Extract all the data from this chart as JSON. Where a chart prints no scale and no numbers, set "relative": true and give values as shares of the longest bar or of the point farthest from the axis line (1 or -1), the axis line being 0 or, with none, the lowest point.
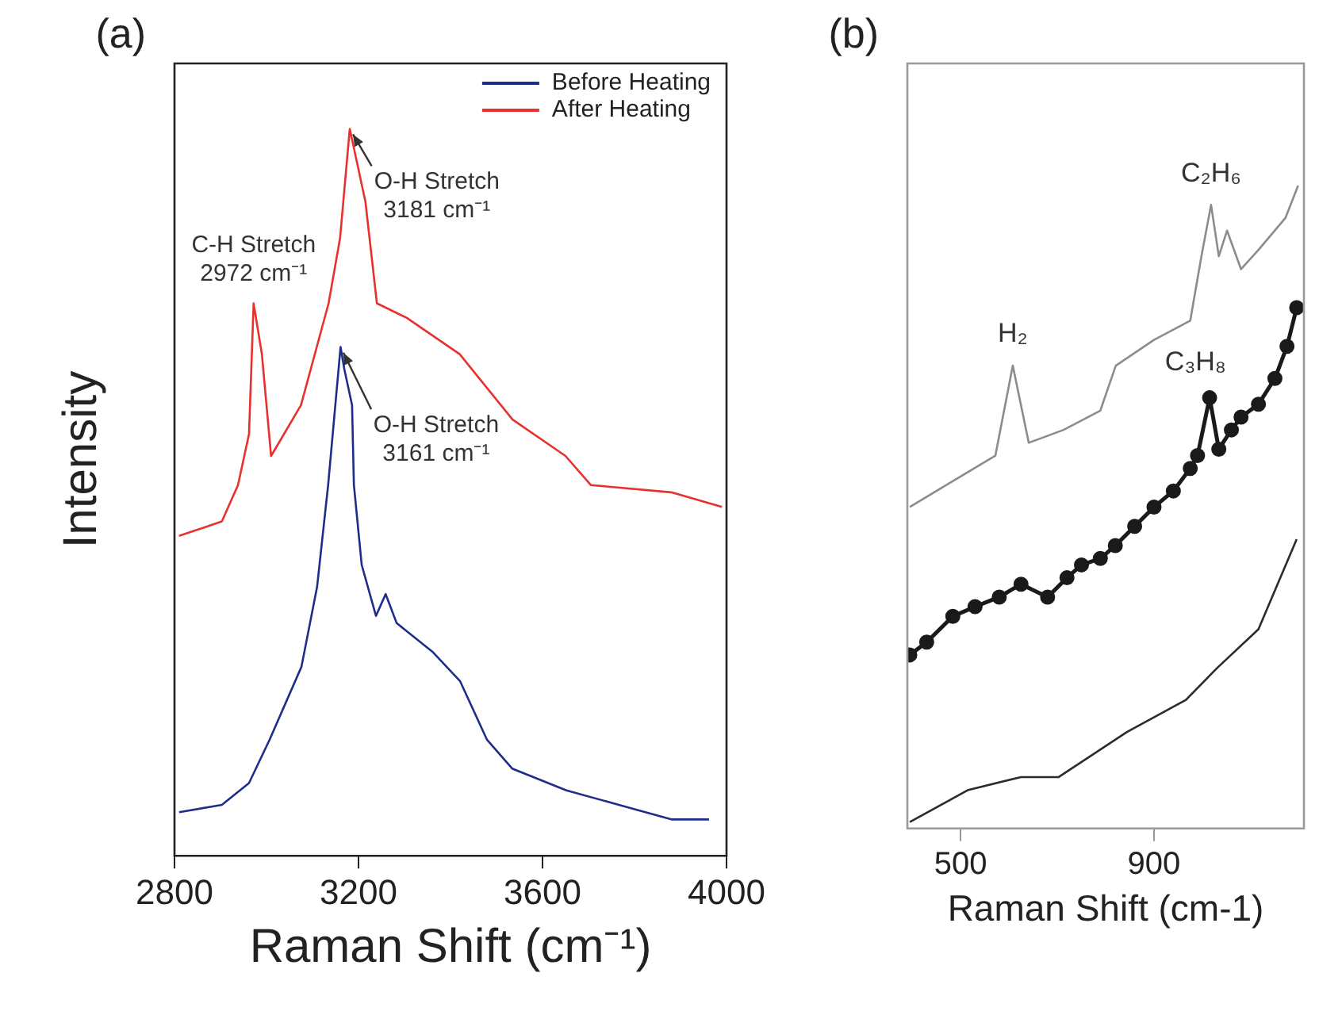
{
  "chart_data": [
    {
      "type": "line",
      "title": "(a)",
      "xlabel": "Raman Shift (cm⁻¹)",
      "ylabel": "Intensity",
      "relative": true,
      "xlim": [
        2800,
        4000
      ],
      "xticks": [
        2800,
        3200,
        3600,
        4000
      ],
      "legend": "top right",
      "series": [
        {
          "name": "Before Heating",
          "color": "#1f2d8a",
          "x": [
            2810,
            2903,
            2962,
            3007,
            3076,
            3110,
            3134,
            3161,
            3169,
            3186,
            3190,
            3207,
            3238,
            3259,
            3283,
            3362,
            3421,
            3479,
            3534,
            3652,
            3766,
            3880,
            3962
          ],
          "values": [
            0.06,
            0.07,
            0.1,
            0.16,
            0.26,
            0.37,
            0.51,
            0.7,
            0.67,
            0.62,
            0.51,
            0.4,
            0.33,
            0.36,
            0.32,
            0.28,
            0.24,
            0.16,
            0.12,
            0.09,
            0.07,
            0.05,
            0.05
          ]
        },
        {
          "name": "After Heating",
          "color": "#e8312f",
          "x": [
            2810,
            2903,
            2938,
            2962,
            2972,
            2990,
            3010,
            3075,
            3135,
            3160,
            3181,
            3215,
            3240,
            3305,
            3420,
            3535,
            3650,
            3705,
            3880,
            3990
          ],
          "values": [
            0.44,
            0.46,
            0.51,
            0.58,
            0.76,
            0.69,
            0.55,
            0.62,
            0.76,
            0.85,
            1,
            0.9,
            0.76,
            0.74,
            0.69,
            0.6,
            0.55,
            0.51,
            0.5,
            0.48
          ]
        }
      ],
      "annotations": [
        {
          "text": "C-H Stretch\n2972 cm⁻¹",
          "x": 2972,
          "y": 0.76
        },
        {
          "text": "O-H Stretch\n3181 cm⁻¹",
          "x": 3181,
          "y": 1
        },
        {
          "text": "O-H Stretch\n3161 cm⁻¹",
          "x": 3161,
          "y": 0.7
        }
      ]
    },
    {
      "type": "line",
      "title": "(b)",
      "xlabel": "Raman Shift (cm-1)",
      "relative": true,
      "xlim": [
        390,
        1210
      ],
      "xticks": [
        500,
        900
      ],
      "series": [
        {
          "color": "#8c8c8c",
          "x": [
            395,
            461,
            572,
            608,
            641,
            713,
            789,
            821,
            900,
            975,
            998,
            1018,
            1034,
            1051,
            1080,
            1116,
            1172,
            1198
          ],
          "values": [
            0.5,
            0.53,
            0.58,
            0.72,
            0.6,
            0.62,
            0.65,
            0.72,
            0.76,
            0.79,
            0.89,
            0.97,
            0.89,
            0.93,
            0.87,
            0.9,
            0.95,
            1
          ]
        },
        {
          "color": "#1a1a1a",
          "marker": "circle",
          "x": [
            395,
            430,
            484,
            530,
            580,
            625,
            680,
            720,
            750,
            789,
            820,
            860,
            900,
            940,
            975,
            990,
            1015,
            1034,
            1060,
            1080,
            1116,
            1150,
            1175,
            1195
          ],
          "values": [
            0.27,
            0.29,
            0.33,
            0.345,
            0.36,
            0.38,
            0.36,
            0.39,
            0.41,
            0.42,
            0.44,
            0.47,
            0.5,
            0.525,
            0.56,
            0.58,
            0.67,
            0.59,
            0.62,
            0.64,
            0.66,
            0.7,
            0.75,
            0.81
          ]
        },
        {
          "color": "#2b2b2b",
          "x": [
            395,
            516,
            625,
            703,
            844,
            966,
            1031,
            1116,
            1195
          ],
          "values": [
            0.01,
            0.06,
            0.08,
            0.08,
            0.15,
            0.2,
            0.25,
            0.31,
            0.45
          ]
        }
      ],
      "annotations": [
        {
          "text": "H₂",
          "x": 608,
          "y": 0.72
        },
        {
          "text": "C₃H₈",
          "x": 890,
          "y": 0.77
        },
        {
          "text": "C₂H₆",
          "x": 1018,
          "y": 0.97
        }
      ]
    }
  ]
}
